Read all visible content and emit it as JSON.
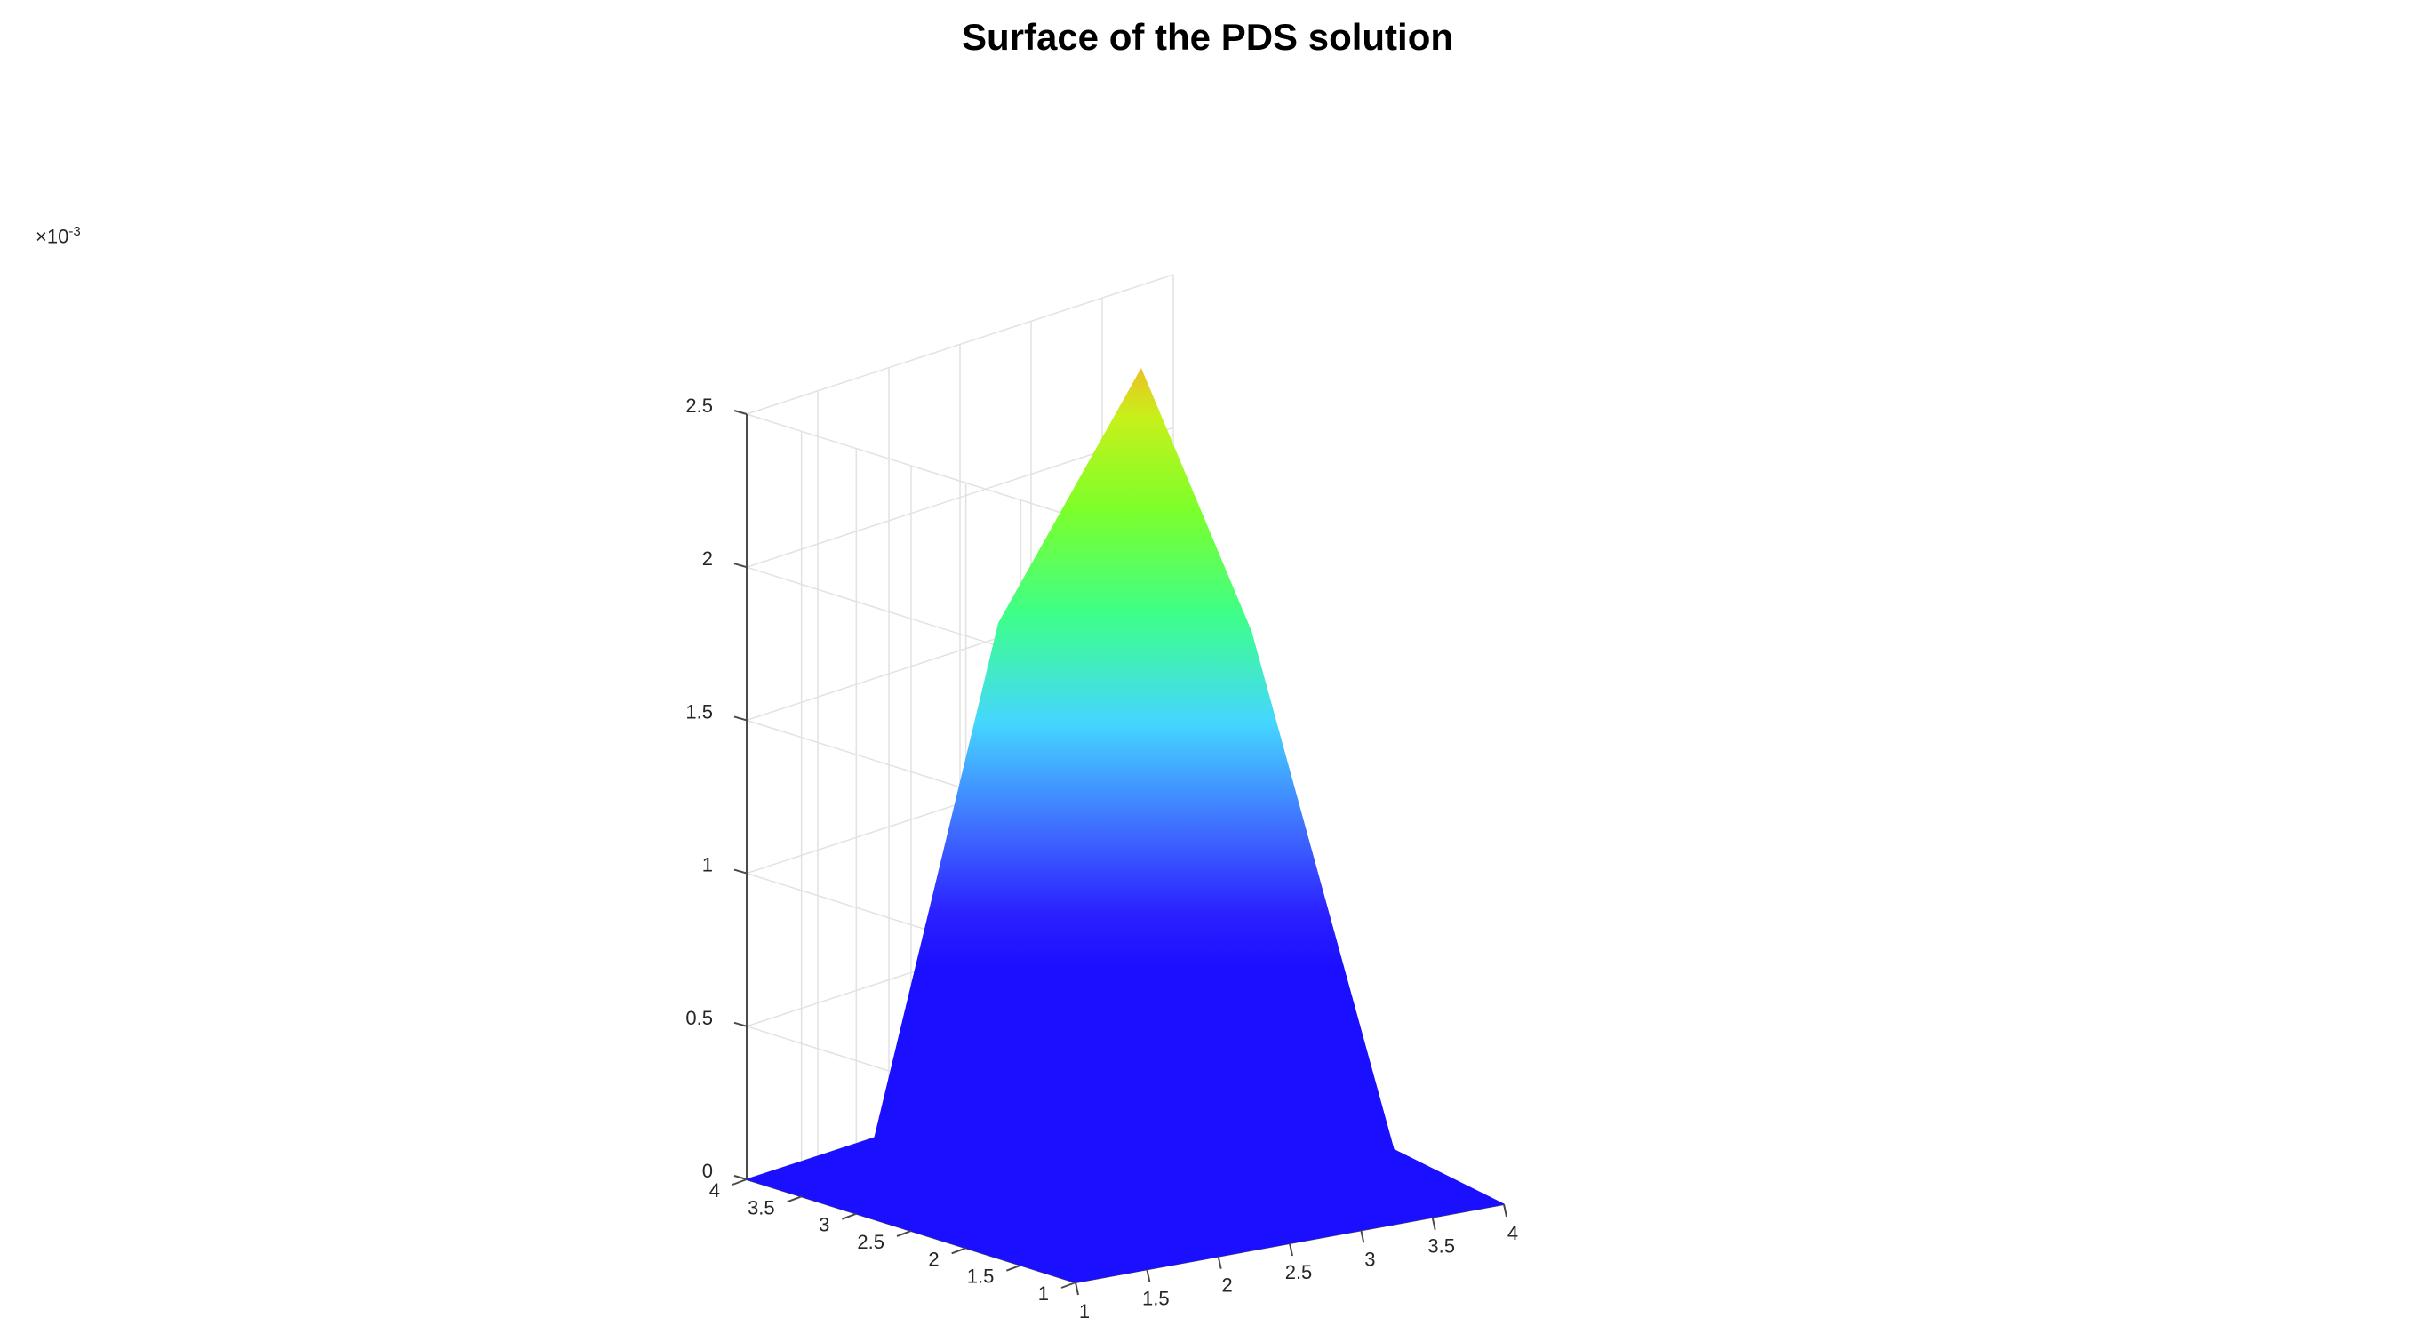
{
  "chart_data": {
    "type": "surface",
    "title": "Surface of the PDS solution",
    "xlabel": "",
    "ylabel": "",
    "zlabel": "",
    "x": [
      1,
      2,
      3,
      4
    ],
    "y": [
      1,
      2,
      3,
      4
    ],
    "z": [
      [
        0,
        0,
        0,
        0
      ],
      [
        0,
        0.0012,
        0.0018,
        0
      ],
      [
        0,
        0.0018,
        0.0025,
        0
      ],
      [
        0,
        0,
        0,
        0
      ]
    ],
    "xlim": [
      1,
      4
    ],
    "ylim": [
      1,
      4
    ],
    "zlim": [
      0,
      0.0025
    ],
    "x_ticks": [
      "1",
      "1.5",
      "2",
      "2.5",
      "3",
      "3.5",
      "4"
    ],
    "y_ticks": [
      "1",
      "1.5",
      "2",
      "2.5",
      "3",
      "3.5",
      "4"
    ],
    "z_ticks": [
      "0",
      "0.5",
      "1",
      "1.5",
      "2",
      "2.5"
    ],
    "z_tick_values": [
      0,
      0.0005,
      0.001,
      0.0015,
      0.002,
      0.0025
    ],
    "z_exponent_base": "×10",
    "z_exponent_power": "-3",
    "colormap": "jet",
    "grid": true
  }
}
